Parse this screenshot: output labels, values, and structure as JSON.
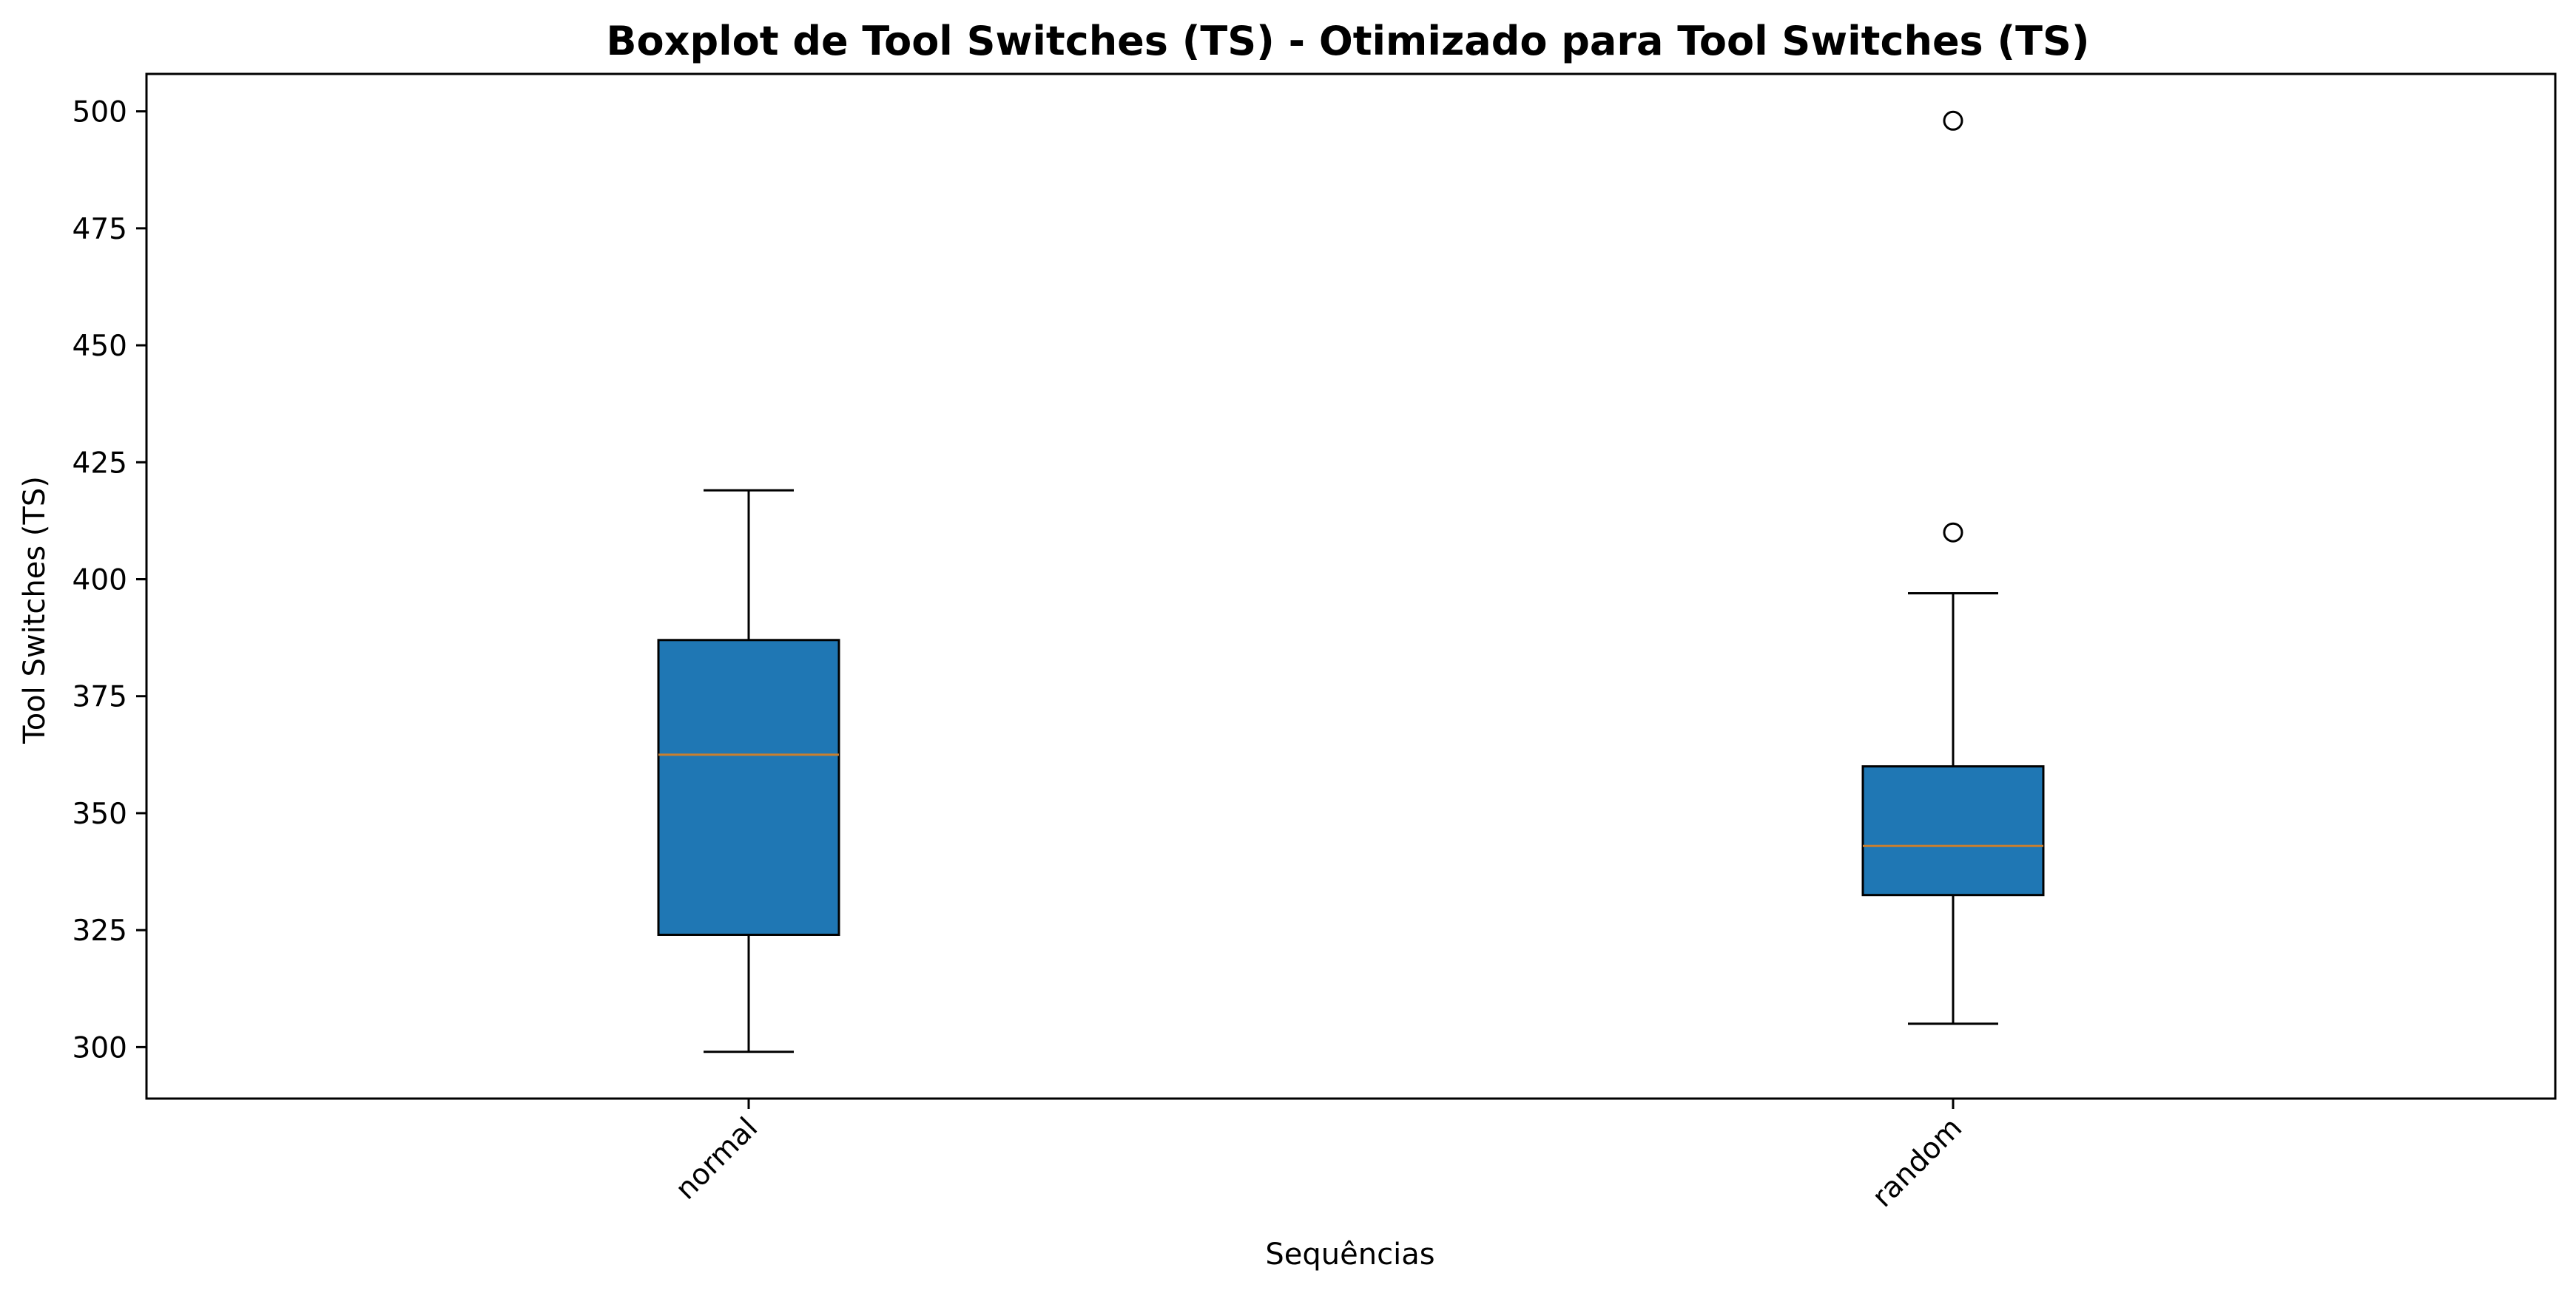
{
  "chart_data": {
    "type": "boxplot",
    "title": "Boxplot de Tool Switches (TS) - Otimizado para Tool Switches (TS)",
    "xlabel": "Sequências",
    "ylabel": "Tool Switches (TS)",
    "ylim": [
      289,
      508
    ],
    "yticks": [
      "300",
      "325",
      "350",
      "375",
      "400",
      "425",
      "450",
      "475",
      "500"
    ],
    "categories": [
      "normal",
      "random"
    ],
    "grid": false,
    "colors": {
      "box_fill": "#1f77b4",
      "median": "#c97f2e",
      "edge": "#000000"
    },
    "boxes": [
      {
        "name": "normal",
        "whisker_low": 299,
        "q1": 324,
        "median": 362.5,
        "q3": 387,
        "whisker_high": 419,
        "outliers": []
      },
      {
        "name": "random",
        "whisker_low": 305,
        "q1": 332.5,
        "median": 343,
        "q3": 360,
        "whisker_high": 397,
        "outliers": [
          410,
          498
        ]
      }
    ]
  }
}
